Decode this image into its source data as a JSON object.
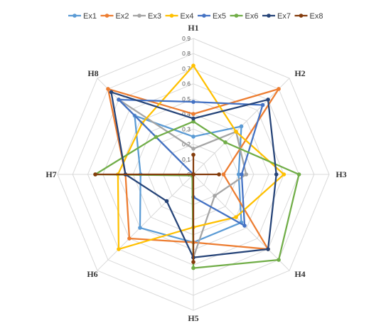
{
  "chart_data": {
    "type": "radar",
    "axes": [
      "H1",
      "H2",
      "H3",
      "H4",
      "H5",
      "H6",
      "H7",
      "H8"
    ],
    "rlim": [
      0,
      0.9
    ],
    "ticks": [
      "0",
      "0.1",
      "0.2",
      "0.3",
      "0.4",
      "0.5",
      "0.6",
      "0.7",
      "0.8",
      "0.9"
    ],
    "tick_values": [
      0,
      0.1,
      0.2,
      0.3,
      0.4,
      0.5,
      0.6,
      0.7,
      0.8,
      0.9
    ],
    "grid": true,
    "legend_position": "top",
    "series": [
      {
        "name": "Ex1",
        "color": "#5b9bd5",
        "values": [
          0.25,
          0.45,
          0.3,
          0.45,
          0.45,
          0.5,
          0.35,
          0.55
        ]
      },
      {
        "name": "Ex2",
        "color": "#ed7d31",
        "values": [
          0.4,
          0.8,
          0.2,
          0.7,
          0.45,
          0.6,
          0.45,
          0.8
        ]
      },
      {
        "name": "Ex3",
        "color": "#a5a5a5",
        "values": [
          0.17,
          0.4,
          0.35,
          0.2,
          0.55,
          0.01,
          0.0,
          0.7
        ]
      },
      {
        "name": "Ex4",
        "color": "#ffc000",
        "values": [
          0.72,
          0.4,
          0.6,
          0.4,
          0.35,
          0.7,
          0.5,
          0.48
        ]
      },
      {
        "name": "Ex5",
        "color": "#4472c4",
        "values": [
          0.48,
          0.65,
          0.32,
          0.48,
          0.15,
          0.01,
          0.0,
          0.7
        ]
      },
      {
        "name": "Ex6",
        "color": "#70ad47",
        "values": [
          0.35,
          0.3,
          0.7,
          0.8,
          0.62,
          0.01,
          0.65,
          0.35
        ]
      },
      {
        "name": "Ex7",
        "color": "#264478",
        "values": [
          0.37,
          0.7,
          0.55,
          0.7,
          0.55,
          0.25,
          0.45,
          0.77
        ]
      },
      {
        "name": "Ex8",
        "color": "#843c0c",
        "values": [
          0.13,
          0.0,
          0.17,
          0.0,
          0.58,
          0.0,
          0.65,
          0.0
        ]
      }
    ]
  }
}
